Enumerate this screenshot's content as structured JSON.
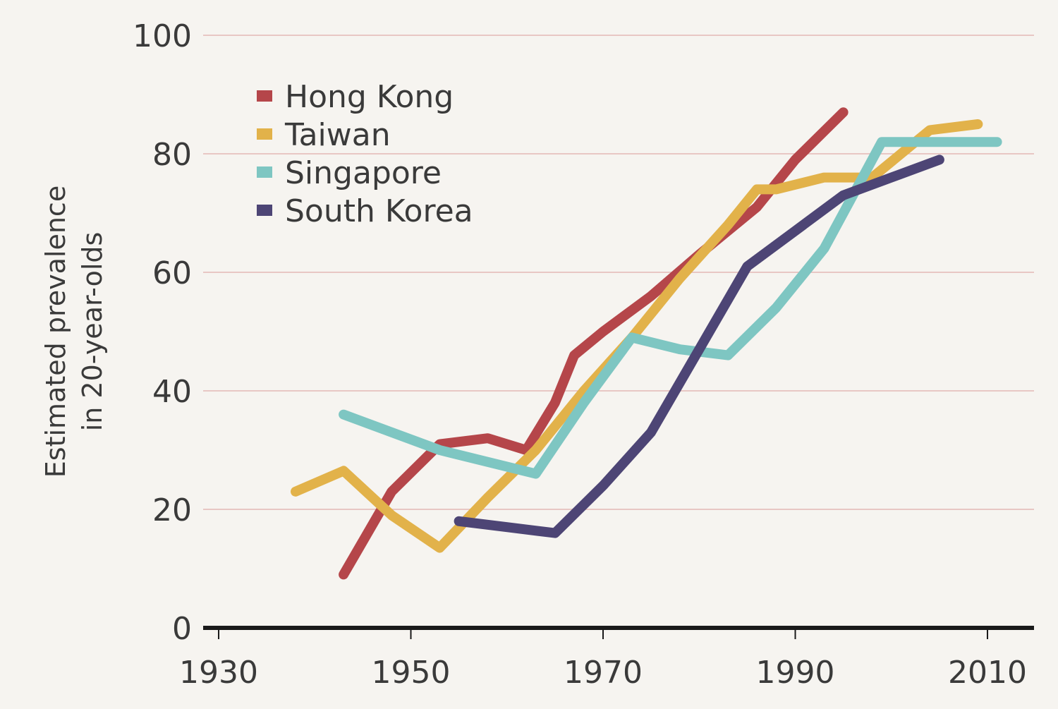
{
  "colors": {
    "background": "#f6f4f0",
    "gridline": "#e4b8b5",
    "axis": "#1a1a1a",
    "text": "#3a3a3a"
  },
  "chart_data": {
    "type": "line",
    "ylabel_lines": [
      "Estimated prevalence",
      "in 20-year-olds"
    ],
    "xlim": [
      1930,
      2015
    ],
    "ylim": [
      0,
      100
    ],
    "x_ticks": [
      "1930",
      "1950",
      "1970",
      "1990",
      "2010"
    ],
    "y_ticks": [
      "0",
      "20",
      "40",
      "60",
      "80",
      "100"
    ],
    "grid": "horizontal",
    "legend_position": "top-left",
    "series": [
      {
        "name": "Hong Kong",
        "color": "#b5464a",
        "points": [
          [
            1943,
            9
          ],
          [
            1948,
            23
          ],
          [
            1953,
            31
          ],
          [
            1958,
            32
          ],
          [
            1962,
            30
          ],
          [
            1965,
            38
          ],
          [
            1967,
            46
          ],
          [
            1970,
            50
          ],
          [
            1975,
            56
          ],
          [
            1980,
            63
          ],
          [
            1986,
            71
          ],
          [
            1990,
            79
          ],
          [
            1995,
            87
          ]
        ]
      },
      {
        "name": "Taiwan",
        "color": "#e2b24a",
        "points": [
          [
            1938,
            23
          ],
          [
            1943,
            26.5
          ],
          [
            1948,
            19
          ],
          [
            1953,
            13.5
          ],
          [
            1958,
            22
          ],
          [
            1963,
            30
          ],
          [
            1968,
            40
          ],
          [
            1973,
            49
          ],
          [
            1978,
            59
          ],
          [
            1983,
            68
          ],
          [
            1986,
            74
          ],
          [
            1988,
            74
          ],
          [
            1993,
            76
          ],
          [
            1998,
            76
          ],
          [
            2004,
            84
          ],
          [
            2009,
            85
          ]
        ]
      },
      {
        "name": "Singapore",
        "color": "#7ec6c2",
        "points": [
          [
            1943,
            36
          ],
          [
            1948,
            33
          ],
          [
            1953,
            30
          ],
          [
            1958,
            28
          ],
          [
            1963,
            26
          ],
          [
            1968,
            38
          ],
          [
            1973,
            49
          ],
          [
            1978,
            47
          ],
          [
            1983,
            46
          ],
          [
            1988,
            54
          ],
          [
            1993,
            64
          ],
          [
            1996,
            73
          ],
          [
            1999,
            82
          ],
          [
            2004,
            82
          ],
          [
            2011,
            82
          ]
        ]
      },
      {
        "name": "South Korea",
        "color": "#4d4575",
        "points": [
          [
            1955,
            18
          ],
          [
            1960,
            17
          ],
          [
            1965,
            16
          ],
          [
            1970,
            24
          ],
          [
            1975,
            33
          ],
          [
            1980,
            47
          ],
          [
            1985,
            61
          ],
          [
            1990,
            67
          ],
          [
            1995,
            73
          ],
          [
            2000,
            76
          ],
          [
            2005,
            79
          ]
        ]
      }
    ]
  }
}
